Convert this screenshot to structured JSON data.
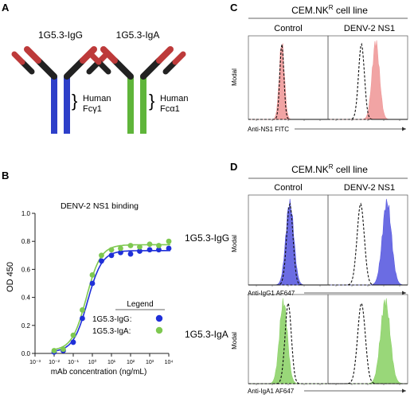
{
  "panels": {
    "a": {
      "letter": "A",
      "antibody_igg": {
        "name": "1G5.3-IgG",
        "fc_line1": "Human",
        "fc_line2": "Fcγ1",
        "heavy_color": "#2d3fc9",
        "light_color": "#bd3a3a"
      },
      "antibody_iga": {
        "name": "1G5.3-IgA",
        "fc_line1": "Human",
        "fc_line2": "Fcα1",
        "heavy_color": "#5fb53a",
        "light_color": "#bd3a3a"
      }
    },
    "b": {
      "letter": "B",
      "legend_title": "Legend",
      "legend_igg": "1G5.3-IgG:",
      "legend_iga": "1G5.3-IgA:"
    },
    "c": {
      "letter": "C",
      "cell_line": "CEM.NK",
      "cell_line_sup": "R",
      "cell_line_suffix": " cell line",
      "col_control": "Control",
      "col_ns1": "DENV-2 NS1",
      "ylabel": "Modal",
      "xlabel": "Anti-NS1 FITC"
    },
    "d": {
      "letter": "D",
      "cell_line": "CEM.NK",
      "cell_line_sup": "R",
      "cell_line_suffix": " cell line",
      "col_control": "Control",
      "col_ns1": "DENV-2 NS1",
      "row_igg": "1G5.3-IgG",
      "row_iga": "1G5.3-IgA",
      "ylabel": "Modal",
      "xlabel_igg": "Anti-IgG1 AF647",
      "xlabel_iga": "Anti-IgA1 AF647"
    }
  },
  "chart_data": [
    {
      "type": "scatter",
      "title": "DENV-2 NS1 binding",
      "xlabel": "mAb concentration (ng/mL)",
      "ylabel": "OD 450",
      "x_scale": "log",
      "xlim": [
        0.001,
        10000
      ],
      "ylim": [
        0,
        1.0
      ],
      "x_ticks": [
        "10⁻³",
        "10⁻²",
        "10⁻¹",
        "10⁰",
        "10¹",
        "10²",
        "10³",
        "10⁴"
      ],
      "y_ticks": [
        "0.0",
        "0.2",
        "0.4",
        "0.6",
        "0.8",
        "1.0"
      ],
      "legend_position": "bottom-right",
      "series": [
        {
          "name": "1G5.3-IgG:",
          "color": "#1f2fd8",
          "x": [
            0.01,
            0.03,
            0.1,
            0.3,
            1,
            3,
            10,
            30,
            100,
            300,
            1000,
            3000,
            10000
          ],
          "y": [
            0.01,
            0.02,
            0.08,
            0.25,
            0.5,
            0.66,
            0.7,
            0.72,
            0.71,
            0.73,
            0.74,
            0.74,
            0.75
          ]
        },
        {
          "name": "1G5.3-IgA:",
          "color": "#7ec850",
          "x": [
            0.01,
            0.03,
            0.1,
            0.3,
            1,
            3,
            10,
            30,
            100,
            300,
            1000,
            3000,
            10000
          ],
          "y": [
            0.02,
            0.03,
            0.13,
            0.31,
            0.56,
            0.7,
            0.74,
            0.75,
            0.77,
            0.76,
            0.78,
            0.77,
            0.8
          ]
        }
      ]
    },
    {
      "type": "area",
      "panel": "C",
      "series": [
        {
          "name": "Control",
          "peak_position": 0.42,
          "fill": "#ef9a9a",
          "dashed_peak_position": 0.42
        },
        {
          "name": "DENV-2 NS1",
          "peak_position": 0.6,
          "fill": "#ef9a9a",
          "dashed_peak_position": 0.42
        }
      ]
    },
    {
      "type": "area",
      "panel": "D",
      "series": [
        {
          "name": "1G5.3-IgG Control",
          "peak_position": 0.52,
          "fill": "#5b5ce0",
          "dashed_peak_position": 0.52
        },
        {
          "name": "1G5.3-IgG DENV-2 NS1",
          "peak_position": 0.74,
          "fill": "#5b5ce0",
          "dashed_peak_position": 0.41
        },
        {
          "name": "1G5.3-IgA Control",
          "peak_position": 0.44,
          "fill": "#8ed36a",
          "dashed_peak_position": 0.5
        },
        {
          "name": "1G5.3-IgA DENV-2 NS1",
          "peak_position": 0.72,
          "fill": "#8ed36a",
          "dashed_peak_position": 0.42
        }
      ]
    }
  ]
}
